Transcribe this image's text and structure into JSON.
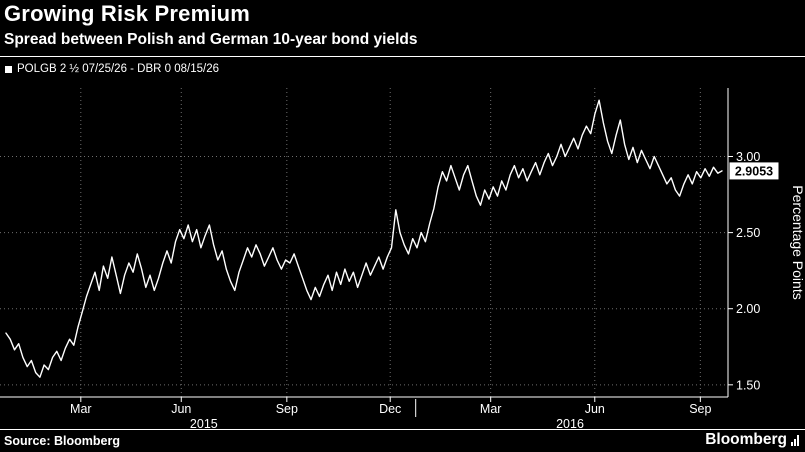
{
  "header": {
    "title": "Growing Risk Premium",
    "subtitle": "Spread between Polish and German 10-year bond yields",
    "legend_label": "POLGB 2 ½ 07/25/26 - DBR 0 08/15/26"
  },
  "footer": {
    "source": "Source: Bloomberg",
    "brand": "Bloomberg"
  },
  "colors": {
    "background": "#000000",
    "line": "#ffffff",
    "grid": "#6e6e6e",
    "text": "#ffffff",
    "badge_bg": "#ffffff",
    "badge_text": "#000000"
  },
  "chart_data": {
    "type": "line",
    "title": "Growing Risk Premium",
    "subtitle": "Spread between Polish and German 10-year bond yields",
    "series_name": "POLGB 2 ½ 07/25/26 - DBR 0 08/15/26",
    "ylabel": "Percentage Points",
    "grid": true,
    "legend_position": "top-left",
    "ylim": [
      1.42,
      3.45
    ],
    "ytick_values": [
      3.0,
      2.5,
      2.0,
      1.5
    ],
    "ytick_labels": [
      "3.00",
      "2.50",
      "2.00",
      "1.50"
    ],
    "xtick_labels": [
      "Mar",
      "Jun",
      "Sep",
      "Dec",
      "Mar",
      "Jun",
      "Sep"
    ],
    "xtick_pos": [
      0.111,
      0.249,
      0.394,
      0.536,
      0.674,
      0.817,
      0.962
    ],
    "year_labels": [
      {
        "label": "2015",
        "pos": 0.28
      },
      {
        "label": "2016",
        "pos": 0.783
      }
    ],
    "year_divider_pos": 0.571,
    "last_value": 2.9053,
    "last_label": "2.9053",
    "values": [
      1.84,
      1.8,
      1.73,
      1.77,
      1.68,
      1.62,
      1.66,
      1.58,
      1.55,
      1.63,
      1.6,
      1.68,
      1.72,
      1.66,
      1.74,
      1.8,
      1.76,
      1.88,
      1.98,
      2.08,
      2.16,
      2.24,
      2.12,
      2.28,
      2.2,
      2.34,
      2.22,
      2.1,
      2.22,
      2.3,
      2.24,
      2.36,
      2.26,
      2.14,
      2.22,
      2.12,
      2.2,
      2.3,
      2.38,
      2.3,
      2.44,
      2.52,
      2.46,
      2.55,
      2.44,
      2.52,
      2.4,
      2.48,
      2.55,
      2.42,
      2.32,
      2.38,
      2.26,
      2.18,
      2.12,
      2.24,
      2.32,
      2.4,
      2.34,
      2.42,
      2.36,
      2.28,
      2.34,
      2.4,
      2.32,
      2.26,
      2.32,
      2.3,
      2.36,
      2.28,
      2.2,
      2.12,
      2.06,
      2.14,
      2.08,
      2.16,
      2.22,
      2.12,
      2.24,
      2.16,
      2.26,
      2.18,
      2.24,
      2.14,
      2.22,
      2.3,
      2.22,
      2.28,
      2.34,
      2.26,
      2.34,
      2.4,
      2.65,
      2.5,
      2.42,
      2.36,
      2.46,
      2.4,
      2.5,
      2.44,
      2.56,
      2.66,
      2.8,
      2.9,
      2.84,
      2.94,
      2.86,
      2.78,
      2.88,
      2.94,
      2.84,
      2.74,
      2.68,
      2.78,
      2.72,
      2.8,
      2.74,
      2.84,
      2.78,
      2.88,
      2.94,
      2.86,
      2.92,
      2.84,
      2.9,
      2.96,
      2.88,
      2.96,
      3.02,
      2.94,
      3.0,
      3.08,
      3.0,
      3.06,
      3.12,
      3.05,
      3.14,
      3.2,
      3.15,
      3.28,
      3.37,
      3.22,
      3.1,
      3.02,
      3.14,
      3.24,
      3.08,
      2.98,
      3.06,
      2.96,
      3.04,
      2.98,
      2.92,
      3.0,
      2.94,
      2.88,
      2.82,
      2.86,
      2.78,
      2.74,
      2.82,
      2.88,
      2.82,
      2.9,
      2.86,
      2.92,
      2.87,
      2.93,
      2.89,
      2.9053
    ]
  }
}
